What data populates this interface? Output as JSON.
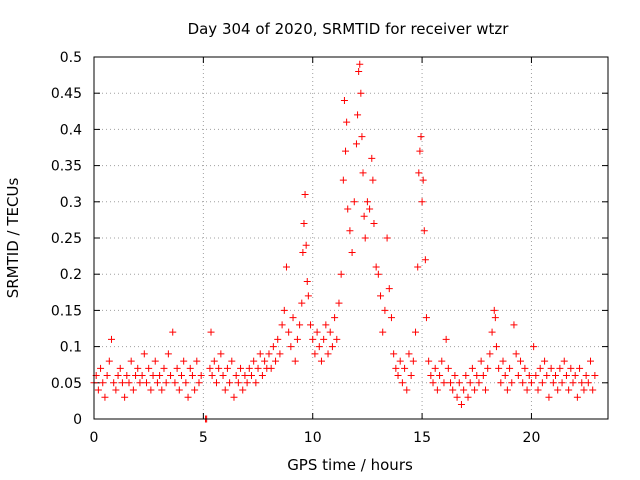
{
  "chart_data": {
    "type": "scatter",
    "title": "Day 304 of 2020, SRMTID for receiver wtzr",
    "xlabel": "GPS time / hours",
    "ylabel": "SRMTID / TECUs",
    "xlim": [
      0,
      23.5
    ],
    "ylim": [
      0,
      0.5
    ],
    "xticks": [
      0,
      5,
      10,
      15,
      20
    ],
    "yticks": [
      0,
      0.05,
      0.1,
      0.15,
      0.2,
      0.25,
      0.3,
      0.35,
      0.4,
      0.45,
      0.5
    ],
    "grid": true,
    "marker": "+",
    "color": "#ff0000",
    "series": [
      {
        "name": "SRMTID",
        "points": [
          [
            0.0,
            0.05
          ],
          [
            0.1,
            0.06
          ],
          [
            0.2,
            0.04
          ],
          [
            0.3,
            0.07
          ],
          [
            0.4,
            0.05
          ],
          [
            0.5,
            0.03
          ],
          [
            0.6,
            0.06
          ],
          [
            0.7,
            0.08
          ],
          [
            0.8,
            0.11
          ],
          [
            0.9,
            0.05
          ],
          [
            1.0,
            0.04
          ],
          [
            1.1,
            0.06
          ],
          [
            1.2,
            0.07
          ],
          [
            1.3,
            0.05
          ],
          [
            1.4,
            0.03
          ],
          [
            1.5,
            0.06
          ],
          [
            1.6,
            0.05
          ],
          [
            1.7,
            0.08
          ],
          [
            1.8,
            0.04
          ],
          [
            1.9,
            0.06
          ],
          [
            2.0,
            0.07
          ],
          [
            2.1,
            0.05
          ],
          [
            2.2,
            0.06
          ],
          [
            2.3,
            0.09
          ],
          [
            2.4,
            0.05
          ],
          [
            2.5,
            0.07
          ],
          [
            2.6,
            0.04
          ],
          [
            2.7,
            0.06
          ],
          [
            2.8,
            0.08
          ],
          [
            2.9,
            0.05
          ],
          [
            3.0,
            0.06
          ],
          [
            3.1,
            0.04
          ],
          [
            3.2,
            0.07
          ],
          [
            3.3,
            0.05
          ],
          [
            3.4,
            0.09
          ],
          [
            3.5,
            0.06
          ],
          [
            3.6,
            0.12
          ],
          [
            3.7,
            0.05
          ],
          [
            3.8,
            0.07
          ],
          [
            3.9,
            0.04
          ],
          [
            4.0,
            0.06
          ],
          [
            4.1,
            0.08
          ],
          [
            4.2,
            0.05
          ],
          [
            4.3,
            0.03
          ],
          [
            4.4,
            0.07
          ],
          [
            4.5,
            0.06
          ],
          [
            4.6,
            0.04
          ],
          [
            4.7,
            0.08
          ],
          [
            4.8,
            0.05
          ],
          [
            4.9,
            0.06
          ],
          [
            5.1,
            0.0
          ],
          [
            5.15,
            0.0
          ],
          [
            5.3,
            0.07
          ],
          [
            5.35,
            0.12
          ],
          [
            5.4,
            0.06
          ],
          [
            5.5,
            0.08
          ],
          [
            5.6,
            0.05
          ],
          [
            5.7,
            0.07
          ],
          [
            5.8,
            0.09
          ],
          [
            5.9,
            0.06
          ],
          [
            6.0,
            0.04
          ],
          [
            6.1,
            0.07
          ],
          [
            6.2,
            0.05
          ],
          [
            6.3,
            0.08
          ],
          [
            6.4,
            0.03
          ],
          [
            6.5,
            0.06
          ],
          [
            6.6,
            0.05
          ],
          [
            6.7,
            0.07
          ],
          [
            6.8,
            0.04
          ],
          [
            6.9,
            0.06
          ],
          [
            7.0,
            0.05
          ],
          [
            7.1,
            0.07
          ],
          [
            7.2,
            0.06
          ],
          [
            7.3,
            0.08
          ],
          [
            7.4,
            0.05
          ],
          [
            7.5,
            0.07
          ],
          [
            7.6,
            0.09
          ],
          [
            7.7,
            0.06
          ],
          [
            7.8,
            0.08
          ],
          [
            7.9,
            0.07
          ],
          [
            8.0,
            0.09
          ],
          [
            8.1,
            0.07
          ],
          [
            8.2,
            0.1
          ],
          [
            8.3,
            0.08
          ],
          [
            8.4,
            0.11
          ],
          [
            8.5,
            0.09
          ],
          [
            8.6,
            0.13
          ],
          [
            8.7,
            0.15
          ],
          [
            8.8,
            0.21
          ],
          [
            8.9,
            0.12
          ],
          [
            9.0,
            0.1
          ],
          [
            9.1,
            0.14
          ],
          [
            9.2,
            0.08
          ],
          [
            9.3,
            0.11
          ],
          [
            9.4,
            0.13
          ],
          [
            9.5,
            0.16
          ],
          [
            9.55,
            0.23
          ],
          [
            9.6,
            0.27
          ],
          [
            9.65,
            0.31
          ],
          [
            9.7,
            0.24
          ],
          [
            9.75,
            0.19
          ],
          [
            9.8,
            0.17
          ],
          [
            9.9,
            0.13
          ],
          [
            10.0,
            0.11
          ],
          [
            10.1,
            0.09
          ],
          [
            10.2,
            0.12
          ],
          [
            10.3,
            0.1
          ],
          [
            10.4,
            0.08
          ],
          [
            10.5,
            0.11
          ],
          [
            10.6,
            0.13
          ],
          [
            10.7,
            0.09
          ],
          [
            10.8,
            0.12
          ],
          [
            10.9,
            0.1
          ],
          [
            11.0,
            0.14
          ],
          [
            11.1,
            0.11
          ],
          [
            11.2,
            0.16
          ],
          [
            11.3,
            0.2
          ],
          [
            11.4,
            0.33
          ],
          [
            11.45,
            0.44
          ],
          [
            11.5,
            0.37
          ],
          [
            11.55,
            0.41
          ],
          [
            11.6,
            0.29
          ],
          [
            11.7,
            0.26
          ],
          [
            11.8,
            0.23
          ],
          [
            11.9,
            0.3
          ],
          [
            12.0,
            0.38
          ],
          [
            12.05,
            0.42
          ],
          [
            12.1,
            0.48
          ],
          [
            12.15,
            0.49
          ],
          [
            12.2,
            0.45
          ],
          [
            12.25,
            0.39
          ],
          [
            12.3,
            0.34
          ],
          [
            12.35,
            0.28
          ],
          [
            12.4,
            0.25
          ],
          [
            12.5,
            0.3
          ],
          [
            12.6,
            0.29
          ],
          [
            12.7,
            0.36
          ],
          [
            12.75,
            0.33
          ],
          [
            12.8,
            0.27
          ],
          [
            12.9,
            0.21
          ],
          [
            13.0,
            0.2
          ],
          [
            13.1,
            0.17
          ],
          [
            13.2,
            0.12
          ],
          [
            13.3,
            0.15
          ],
          [
            13.4,
            0.25
          ],
          [
            13.5,
            0.18
          ],
          [
            13.6,
            0.14
          ],
          [
            13.7,
            0.09
          ],
          [
            13.8,
            0.07
          ],
          [
            13.9,
            0.06
          ],
          [
            14.0,
            0.08
          ],
          [
            14.1,
            0.05
          ],
          [
            14.2,
            0.07
          ],
          [
            14.3,
            0.04
          ],
          [
            14.4,
            0.09
          ],
          [
            14.5,
            0.06
          ],
          [
            14.6,
            0.08
          ],
          [
            14.7,
            0.12
          ],
          [
            14.8,
            0.21
          ],
          [
            14.85,
            0.34
          ],
          [
            14.9,
            0.37
          ],
          [
            14.95,
            0.39
          ],
          [
            15.0,
            0.3
          ],
          [
            15.05,
            0.33
          ],
          [
            15.1,
            0.26
          ],
          [
            15.15,
            0.22
          ],
          [
            15.2,
            0.14
          ],
          [
            15.3,
            0.08
          ],
          [
            15.4,
            0.06
          ],
          [
            15.5,
            0.05
          ],
          [
            15.6,
            0.07
          ],
          [
            15.7,
            0.04
          ],
          [
            15.8,
            0.06
          ],
          [
            15.9,
            0.08
          ],
          [
            16.0,
            0.05
          ],
          [
            16.1,
            0.11
          ],
          [
            16.2,
            0.07
          ],
          [
            16.3,
            0.05
          ],
          [
            16.4,
            0.04
          ],
          [
            16.5,
            0.06
          ],
          [
            16.6,
            0.03
          ],
          [
            16.7,
            0.05
          ],
          [
            16.8,
            0.02
          ],
          [
            16.9,
            0.04
          ],
          [
            17.0,
            0.06
          ],
          [
            17.1,
            0.03
          ],
          [
            17.2,
            0.05
          ],
          [
            17.3,
            0.07
          ],
          [
            17.4,
            0.04
          ],
          [
            17.5,
            0.06
          ],
          [
            17.6,
            0.05
          ],
          [
            17.7,
            0.08
          ],
          [
            17.8,
            0.06
          ],
          [
            17.9,
            0.04
          ],
          [
            18.0,
            0.07
          ],
          [
            18.1,
            0.09
          ],
          [
            18.2,
            0.12
          ],
          [
            18.3,
            0.15
          ],
          [
            18.35,
            0.14
          ],
          [
            18.4,
            0.1
          ],
          [
            18.5,
            0.07
          ],
          [
            18.6,
            0.05
          ],
          [
            18.7,
            0.08
          ],
          [
            18.8,
            0.06
          ],
          [
            18.9,
            0.04
          ],
          [
            19.0,
            0.07
          ],
          [
            19.1,
            0.05
          ],
          [
            19.2,
            0.13
          ],
          [
            19.3,
            0.09
          ],
          [
            19.4,
            0.06
          ],
          [
            19.5,
            0.08
          ],
          [
            19.6,
            0.05
          ],
          [
            19.7,
            0.07
          ],
          [
            19.8,
            0.04
          ],
          [
            19.9,
            0.06
          ],
          [
            20.0,
            0.05
          ],
          [
            20.1,
            0.1
          ],
          [
            20.2,
            0.06
          ],
          [
            20.3,
            0.04
          ],
          [
            20.4,
            0.07
          ],
          [
            20.5,
            0.05
          ],
          [
            20.6,
            0.08
          ],
          [
            20.7,
            0.06
          ],
          [
            20.8,
            0.03
          ],
          [
            20.9,
            0.07
          ],
          [
            21.0,
            0.05
          ],
          [
            21.1,
            0.06
          ],
          [
            21.2,
            0.04
          ],
          [
            21.3,
            0.07
          ],
          [
            21.4,
            0.05
          ],
          [
            21.5,
            0.08
          ],
          [
            21.6,
            0.06
          ],
          [
            21.7,
            0.04
          ],
          [
            21.8,
            0.07
          ],
          [
            21.9,
            0.05
          ],
          [
            22.0,
            0.06
          ],
          [
            22.1,
            0.03
          ],
          [
            22.2,
            0.07
          ],
          [
            22.3,
            0.05
          ],
          [
            22.4,
            0.04
          ],
          [
            22.5,
            0.06
          ],
          [
            22.6,
            0.05
          ],
          [
            22.7,
            0.08
          ],
          [
            22.8,
            0.04
          ],
          [
            22.9,
            0.06
          ]
        ]
      }
    ]
  }
}
